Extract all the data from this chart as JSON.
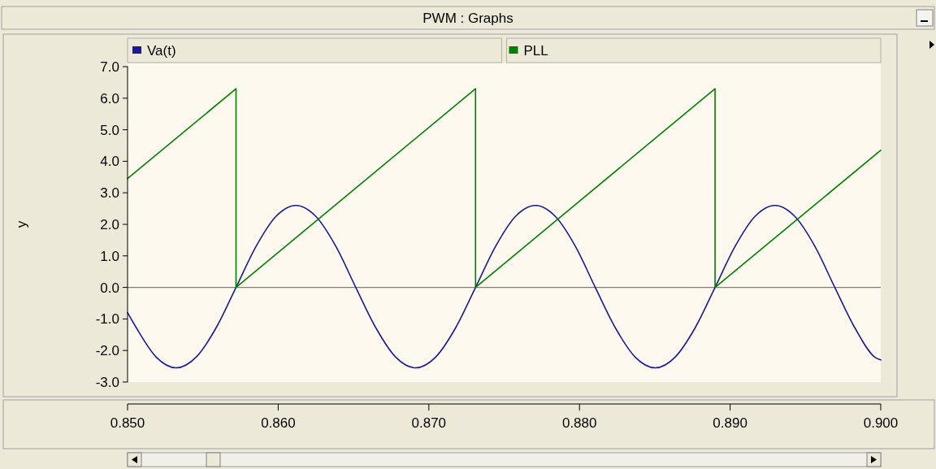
{
  "chart_data": {
    "type": "line",
    "title": "PWM : Graphs",
    "ylabel": "y",
    "xlim": [
      0.85,
      0.9
    ],
    "xticks": [
      {
        "value": 0.85,
        "label": "0.850"
      },
      {
        "value": 0.86,
        "label": "0.860"
      },
      {
        "value": 0.87,
        "label": "0.870"
      },
      {
        "value": 0.88,
        "label": "0.880"
      },
      {
        "value": 0.89,
        "label": "0.890"
      },
      {
        "value": 0.9,
        "label": "0.900"
      }
    ],
    "ylim": [
      -3,
      7
    ],
    "yticks": [
      {
        "value": -3,
        "label": "-3.0"
      },
      {
        "value": -2,
        "label": "-2.0"
      },
      {
        "value": -1,
        "label": "-1.0"
      },
      {
        "value": 0,
        "label": "0.0"
      },
      {
        "value": 1,
        "label": "1.0"
      },
      {
        "value": 2,
        "label": "2.0"
      },
      {
        "value": 3,
        "label": "3.0"
      },
      {
        "value": 4,
        "label": "4.0"
      },
      {
        "value": 5,
        "label": "5.0"
      },
      {
        "value": 6,
        "label": "6.0"
      },
      {
        "value": 7,
        "label": "7.0"
      }
    ],
    "ref_lines": [
      {
        "axis": "y",
        "value": 0,
        "color": "#808080"
      }
    ],
    "legend": "top",
    "grid": false,
    "marker": "none",
    "line_style": "solid",
    "series": [
      {
        "name": "Va(t)",
        "color": "#1a1a9c",
        "x": [
          0.85,
          0.85058,
          0.8519,
          0.85323,
          0.85455,
          0.85588,
          0.8572,
          0.85853,
          0.85985,
          0.86118,
          0.8625,
          0.86383,
          0.86515,
          0.86648,
          0.8678,
          0.86913,
          0.87045,
          0.87178,
          0.8731,
          0.87443,
          0.87575,
          0.87708,
          0.8784,
          0.87973,
          0.88105,
          0.88238,
          0.8837,
          0.88503,
          0.88635,
          0.88768,
          0.889,
          0.89033,
          0.89165,
          0.89298,
          0.8943,
          0.89563,
          0.89695,
          0.89828,
          0.8996,
          0.9
        ],
        "values": [
          -0.8,
          -1.28,
          -2.21,
          -2.55,
          -2.21,
          -1.28,
          0,
          1.3,
          2.25,
          2.6,
          2.25,
          1.3,
          0,
          -1.28,
          -2.21,
          -2.55,
          -2.21,
          -1.28,
          0,
          1.3,
          2.25,
          2.6,
          2.25,
          1.3,
          0,
          -1.28,
          -2.21,
          -2.55,
          -2.21,
          -1.28,
          0,
          1.3,
          2.25,
          2.6,
          2.25,
          1.3,
          0,
          -1.28,
          -2.21,
          -2.3
        ]
      },
      {
        "name": "PLL",
        "color": "#008000",
        "x": [
          0.85,
          0.8572,
          0.8572,
          0.8731,
          0.8731,
          0.889,
          0.889,
          0.9
        ],
        "values": [
          3.45,
          6.3,
          0,
          6.3,
          0,
          6.3,
          0,
          4.35
        ]
      }
    ]
  }
}
